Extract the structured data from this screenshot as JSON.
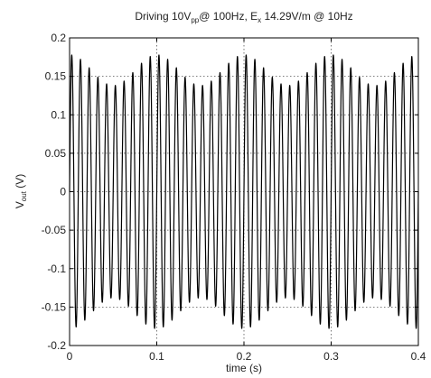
{
  "chart_data": {
    "type": "line",
    "title": {
      "prefix": "Driving 10V",
      "sub1": "pp",
      "middle": "@ 100Hz, E",
      "sub2": "x",
      "suffix": " 14.29V/m @ 10Hz"
    },
    "xlabel": "time (s)",
    "ylabel": {
      "main": "V",
      "sub": "out",
      "unit": " (V)"
    },
    "xlim": [
      0,
      0.4
    ],
    "ylim": [
      -0.2,
      0.2
    ],
    "xticks": [
      0,
      0.1,
      0.2,
      0.3,
      0.4
    ],
    "xtick_labels": [
      "0",
      "0.1",
      "0.2",
      "0.3",
      "0.4"
    ],
    "yticks": [
      -0.2,
      -0.15,
      -0.1,
      -0.05,
      0,
      0.05,
      0.1,
      0.15,
      0.2
    ],
    "ytick_labels": [
      "-0.2",
      "-0.15",
      "-0.1",
      "-0.05",
      "0",
      "0.05",
      "0.1",
      "0.15",
      "0.2"
    ],
    "grid": true,
    "series": [
      {
        "carrier_frequency_hz": 100,
        "modulation_frequency_hz": 10,
        "carrier_amplitude_v": 0.158,
        "modulation_amplitude_v": 0.02,
        "x_start": 0,
        "x_end": 0.4,
        "color": "#000000"
      }
    ]
  }
}
